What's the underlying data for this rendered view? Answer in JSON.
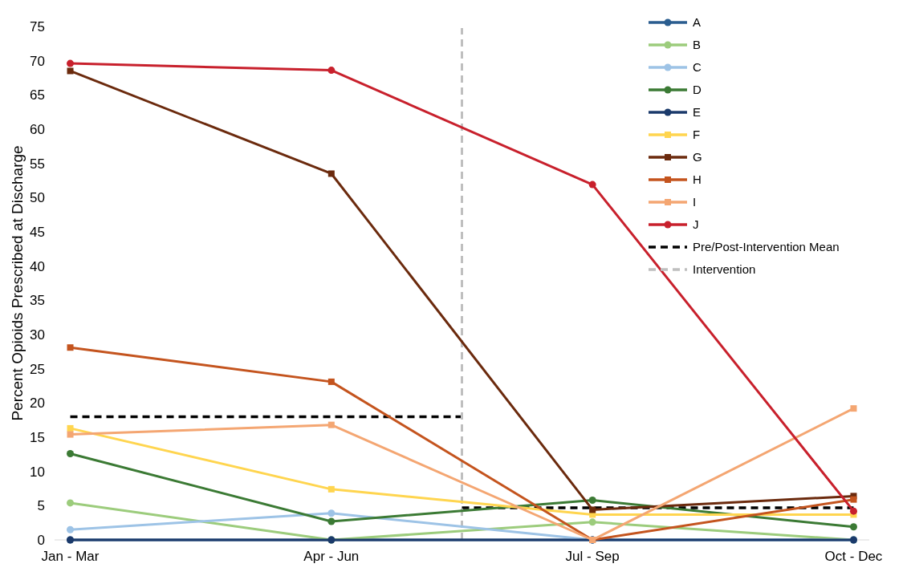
{
  "chart_data": {
    "type": "line",
    "ylabel": "Percent Opioids Prescribed at Discharge",
    "categories": [
      "Jan - Mar",
      "Apr - Jun",
      "Jul - Sep",
      "Oct - Dec"
    ],
    "ylim": [
      0,
      75
    ],
    "yticks": [
      0,
      5,
      10,
      15,
      20,
      25,
      30,
      35,
      40,
      45,
      50,
      55,
      60,
      65,
      70,
      75
    ],
    "grid": false,
    "legend": "top right",
    "line_style": "solid",
    "series": [
      {
        "name": "A",
        "color": "#2a5d8f",
        "marker": "circle",
        "values": [
          0,
          0,
          0,
          0
        ]
      },
      {
        "name": "B",
        "color": "#9ccc7c",
        "marker": "circle",
        "values": [
          5.4,
          0,
          2.6,
          0
        ]
      },
      {
        "name": "C",
        "color": "#9dc3e6",
        "marker": "circle",
        "values": [
          1.5,
          3.9,
          0,
          0
        ]
      },
      {
        "name": "D",
        "color": "#3b7a34",
        "marker": "circle",
        "values": [
          12.6,
          2.7,
          5.8,
          1.9
        ]
      },
      {
        "name": "E",
        "color": "#1b3a6b",
        "marker": "circle",
        "values": [
          0,
          0,
          0,
          0
        ]
      },
      {
        "name": "F",
        "color": "#ffd54f",
        "marker": "square",
        "values": [
          16.3,
          7.4,
          3.7,
          3.7
        ]
      },
      {
        "name": "G",
        "color": "#6b2a0d",
        "marker": "square",
        "values": [
          68.5,
          53.5,
          4.4,
          6.4
        ]
      },
      {
        "name": "H",
        "color": "#c4541e",
        "marker": "square",
        "values": [
          28.1,
          23.1,
          0,
          5.9
        ]
      },
      {
        "name": "I",
        "color": "#f4a672",
        "marker": "square",
        "values": [
          15.4,
          16.8,
          0,
          19.2
        ]
      },
      {
        "name": "J",
        "color": "#c8202c",
        "marker": "circle",
        "values": [
          69.6,
          68.6,
          51.9,
          4.2
        ]
      }
    ],
    "ref_lines": [
      {
        "axis": "y",
        "value": 18,
        "label": "Pre/Post-Intervention Mean",
        "color": "#000000",
        "line_style": "dashed"
      },
      {
        "axis": "y",
        "value": 4.7,
        "color": "#000000",
        "line_style": "dashed"
      },
      {
        "axis": "x",
        "label": "Intervention",
        "color": "#bfbfbf",
        "line_style": "dashed"
      }
    ]
  }
}
